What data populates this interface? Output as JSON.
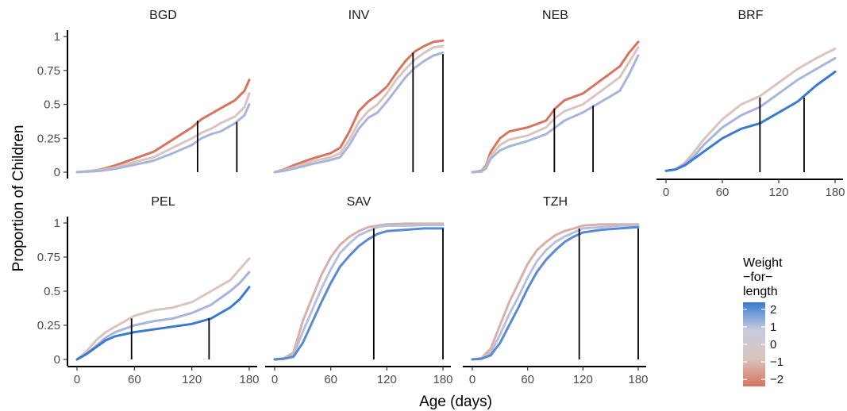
{
  "chart_data": {
    "type": "line",
    "xlabel": "Age (days)",
    "ylabel": "Proportion of Children",
    "xlim": [
      0,
      180
    ],
    "ylim": [
      0,
      1
    ],
    "xticks": [
      0,
      60,
      120,
      180
    ],
    "xtick_labels": [
      "0",
      "60",
      "120",
      "180"
    ],
    "yticks": [
      0,
      0.25,
      0.5,
      0.75,
      1
    ],
    "ytick_labels": [
      "0",
      "0.25",
      "0.5",
      "0.75",
      "1"
    ],
    "grid": false,
    "legend": {
      "title": "Weight\n−for−\nlength",
      "placement": "right",
      "type": "colorbar",
      "range": [
        -2.4,
        2.4
      ],
      "ticks": [
        2,
        1,
        0,
        -1,
        -2
      ],
      "tick_labels": [
        "2",
        "1",
        "0",
        "−1",
        "−2"
      ],
      "colors": [
        "#d77460",
        "#d9c5be",
        "#c7cbde",
        "#3a7bd1"
      ]
    },
    "panels": [
      {
        "title": "BGD",
        "series": [
          {
            "wlz": -2,
            "color": "#d77460",
            "x": [
              0,
              15,
              25,
              40,
              60,
              80,
              100,
              120,
              130,
              140,
              150,
              165,
              175,
              180
            ],
            "y": [
              0,
              0.01,
              0.02,
              0.05,
              0.1,
              0.15,
              0.24,
              0.33,
              0.39,
              0.43,
              0.47,
              0.53,
              0.6,
              0.68
            ]
          },
          {
            "wlz": 0,
            "color": "#d9c5be",
            "x": [
              0,
              15,
              25,
              40,
              60,
              80,
              100,
              120,
              130,
              140,
              150,
              165,
              175,
              180
            ],
            "y": [
              0,
              0.01,
              0.015,
              0.035,
              0.075,
              0.11,
              0.18,
              0.25,
              0.29,
              0.32,
              0.36,
              0.41,
              0.48,
              0.58
            ]
          },
          {
            "wlz": 1,
            "color": "#a8b5db",
            "x": [
              0,
              15,
              25,
              40,
              60,
              80,
              100,
              120,
              130,
              140,
              150,
              165,
              175,
              180
            ],
            "y": [
              0,
              0.005,
              0.01,
              0.025,
              0.055,
              0.085,
              0.14,
              0.2,
              0.25,
              0.28,
              0.3,
              0.36,
              0.42,
              0.5
            ]
          }
        ],
        "markers": [
          {
            "x": 126,
            "y": 0.38
          },
          {
            "x": 167,
            "y": 0.37
          }
        ]
      },
      {
        "title": "INV",
        "series": [
          {
            "wlz": -2,
            "color": "#d77460",
            "x": [
              0,
              10,
              20,
              40,
              60,
              70,
              80,
              90,
              100,
              110,
              120,
              130,
              140,
              150,
              160,
              170,
              180
            ],
            "y": [
              0,
              0.02,
              0.05,
              0.1,
              0.14,
              0.18,
              0.3,
              0.45,
              0.52,
              0.57,
              0.63,
              0.73,
              0.82,
              0.89,
              0.93,
              0.96,
              0.97
            ]
          },
          {
            "wlz": 0,
            "color": "#d9c5be",
            "x": [
              0,
              10,
              20,
              40,
              60,
              70,
              80,
              90,
              100,
              110,
              120,
              130,
              140,
              150,
              160,
              170,
              180
            ],
            "y": [
              0,
              0.015,
              0.035,
              0.08,
              0.11,
              0.14,
              0.24,
              0.37,
              0.45,
              0.5,
              0.58,
              0.68,
              0.76,
              0.83,
              0.88,
              0.92,
              0.93
            ]
          },
          {
            "wlz": 1,
            "color": "#a8b5db",
            "x": [
              0,
              10,
              20,
              40,
              60,
              70,
              80,
              90,
              100,
              110,
              120,
              130,
              140,
              150,
              160,
              170,
              180
            ],
            "y": [
              0,
              0.01,
              0.025,
              0.06,
              0.09,
              0.11,
              0.2,
              0.32,
              0.4,
              0.44,
              0.52,
              0.61,
              0.7,
              0.77,
              0.82,
              0.86,
              0.88
            ]
          }
        ],
        "markers": [
          {
            "x": 148,
            "y": 0.88
          },
          {
            "x": 180,
            "y": 0.87
          }
        ]
      },
      {
        "title": "NEB",
        "series": [
          {
            "wlz": -2,
            "color": "#d77460",
            "x": [
              0,
              10,
              15,
              20,
              30,
              40,
              60,
              80,
              90,
              100,
              120,
              140,
              160,
              170,
              180
            ],
            "y": [
              0,
              0.01,
              0.05,
              0.15,
              0.25,
              0.3,
              0.33,
              0.38,
              0.47,
              0.53,
              0.58,
              0.68,
              0.78,
              0.88,
              0.96
            ]
          },
          {
            "wlz": 0,
            "color": "#d9c5be",
            "x": [
              0,
              10,
              15,
              20,
              30,
              40,
              60,
              80,
              90,
              100,
              120,
              140,
              160,
              170,
              180
            ],
            "y": [
              0,
              0.005,
              0.04,
              0.12,
              0.2,
              0.24,
              0.27,
              0.33,
              0.4,
              0.45,
              0.5,
              0.6,
              0.7,
              0.81,
              0.92
            ]
          },
          {
            "wlz": 1,
            "color": "#a8b5db",
            "x": [
              0,
              10,
              15,
              20,
              30,
              40,
              60,
              80,
              90,
              100,
              120,
              140,
              160,
              170,
              180
            ],
            "y": [
              0,
              0.005,
              0.03,
              0.1,
              0.16,
              0.19,
              0.23,
              0.28,
              0.33,
              0.38,
              0.44,
              0.52,
              0.6,
              0.72,
              0.86
            ]
          }
        ],
        "markers": [
          {
            "x": 89,
            "y": 0.47
          },
          {
            "x": 131,
            "y": 0.49
          }
        ]
      },
      {
        "title": "BRF",
        "series": [
          {
            "wlz": 0,
            "color": "#d9c5be",
            "x": [
              0,
              10,
              20,
              30,
              40,
              60,
              80,
              100,
              120,
              140,
              160,
              180
            ],
            "y": [
              0.01,
              0.02,
              0.07,
              0.15,
              0.24,
              0.39,
              0.5,
              0.56,
              0.66,
              0.76,
              0.84,
              0.91
            ]
          },
          {
            "wlz": 1,
            "color": "#a8b5db",
            "x": [
              0,
              10,
              20,
              30,
              40,
              60,
              80,
              100,
              120,
              140,
              160,
              180
            ],
            "y": [
              0.01,
              0.02,
              0.06,
              0.12,
              0.2,
              0.33,
              0.42,
              0.48,
              0.58,
              0.68,
              0.76,
              0.84
            ]
          },
          {
            "wlz": 2,
            "color": "#3a7bd1",
            "x": [
              0,
              10,
              20,
              30,
              40,
              60,
              80,
              100,
              120,
              140,
              160,
              180
            ],
            "y": [
              0.01,
              0.02,
              0.05,
              0.1,
              0.15,
              0.25,
              0.32,
              0.36,
              0.44,
              0.52,
              0.64,
              0.74
            ]
          }
        ],
        "markers": [
          {
            "x": 100,
            "y": 0.55
          },
          {
            "x": 147,
            "y": 0.55
          }
        ]
      },
      {
        "title": "PEL",
        "series": [
          {
            "wlz": 0,
            "color": "#d9c5be",
            "x": [
              0,
              10,
              20,
              30,
              40,
              60,
              80,
              100,
              120,
              140,
              160,
              170,
              180
            ],
            "y": [
              0,
              0.06,
              0.14,
              0.2,
              0.24,
              0.32,
              0.36,
              0.38,
              0.42,
              0.5,
              0.58,
              0.66,
              0.74
            ]
          },
          {
            "wlz": 1,
            "color": "#a8b5db",
            "x": [
              0,
              10,
              20,
              30,
              40,
              60,
              80,
              100,
              120,
              140,
              160,
              170,
              180
            ],
            "y": [
              0,
              0.04,
              0.1,
              0.16,
              0.2,
              0.25,
              0.28,
              0.3,
              0.34,
              0.4,
              0.5,
              0.56,
              0.64
            ]
          },
          {
            "wlz": 2,
            "color": "#3a7bd1",
            "x": [
              0,
              10,
              20,
              30,
              40,
              60,
              80,
              100,
              120,
              140,
              160,
              170,
              180
            ],
            "y": [
              0,
              0.04,
              0.09,
              0.14,
              0.17,
              0.2,
              0.22,
              0.24,
              0.26,
              0.3,
              0.38,
              0.44,
              0.53
            ]
          }
        ],
        "markers": [
          {
            "x": 57,
            "y": 0.3
          },
          {
            "x": 138,
            "y": 0.3
          }
        ]
      },
      {
        "title": "SAV",
        "series": [
          {
            "wlz": -1,
            "color": "#d9b0a8",
            "x": [
              0,
              10,
              20,
              30,
              40,
              50,
              60,
              70,
              80,
              90,
              100,
              110,
              120,
              140,
              160,
              180
            ],
            "y": [
              0,
              0.01,
              0.05,
              0.28,
              0.45,
              0.62,
              0.75,
              0.84,
              0.9,
              0.94,
              0.97,
              0.98,
              0.99,
              0.995,
              0.995,
              0.995
            ]
          },
          {
            "wlz": 0.5,
            "color": "#b8c0dd",
            "x": [
              0,
              10,
              20,
              30,
              40,
              50,
              60,
              70,
              80,
              90,
              100,
              110,
              120,
              140,
              160,
              180
            ],
            "y": [
              0,
              0.005,
              0.03,
              0.2,
              0.36,
              0.52,
              0.66,
              0.78,
              0.85,
              0.91,
              0.94,
              0.97,
              0.98,
              0.98,
              0.985,
              0.985
            ]
          },
          {
            "wlz": 1.5,
            "color": "#5a8ad0",
            "x": [
              0,
              10,
              20,
              30,
              40,
              50,
              60,
              70,
              80,
              90,
              100,
              110,
              120,
              140,
              160,
              180
            ],
            "y": [
              0,
              0.005,
              0.02,
              0.12,
              0.27,
              0.42,
              0.56,
              0.68,
              0.76,
              0.83,
              0.88,
              0.92,
              0.94,
              0.95,
              0.96,
              0.96
            ]
          }
        ],
        "markers": [
          {
            "x": 106,
            "y": 0.96
          },
          {
            "x": 180,
            "y": 0.96
          }
        ]
      },
      {
        "title": "TZH",
        "series": [
          {
            "wlz": -1,
            "color": "#d9b0a8",
            "x": [
              0,
              10,
              20,
              30,
              40,
              50,
              60,
              70,
              80,
              90,
              100,
              110,
              120,
              140,
              160,
              180
            ],
            "y": [
              0,
              0.01,
              0.08,
              0.25,
              0.42,
              0.56,
              0.7,
              0.8,
              0.86,
              0.91,
              0.94,
              0.96,
              0.98,
              0.99,
              0.99,
              0.99
            ]
          },
          {
            "wlz": 0.5,
            "color": "#b8c0dd",
            "x": [
              0,
              10,
              20,
              30,
              40,
              50,
              60,
              70,
              80,
              90,
              100,
              110,
              120,
              140,
              160,
              180
            ],
            "y": [
              0,
              0.005,
              0.05,
              0.18,
              0.33,
              0.46,
              0.6,
              0.72,
              0.8,
              0.86,
              0.9,
              0.93,
              0.96,
              0.97,
              0.98,
              0.98
            ]
          },
          {
            "wlz": 1.5,
            "color": "#5a8ad0",
            "x": [
              0,
              10,
              20,
              30,
              40,
              50,
              60,
              70,
              80,
              90,
              100,
              110,
              120,
              140,
              160,
              180
            ],
            "y": [
              0,
              0.005,
              0.03,
              0.12,
              0.25,
              0.38,
              0.52,
              0.64,
              0.73,
              0.8,
              0.86,
              0.9,
              0.93,
              0.95,
              0.96,
              0.97
            ]
          }
        ],
        "markers": [
          {
            "x": 116,
            "y": 0.96
          },
          {
            "x": 180,
            "y": 0.96
          }
        ]
      }
    ]
  }
}
